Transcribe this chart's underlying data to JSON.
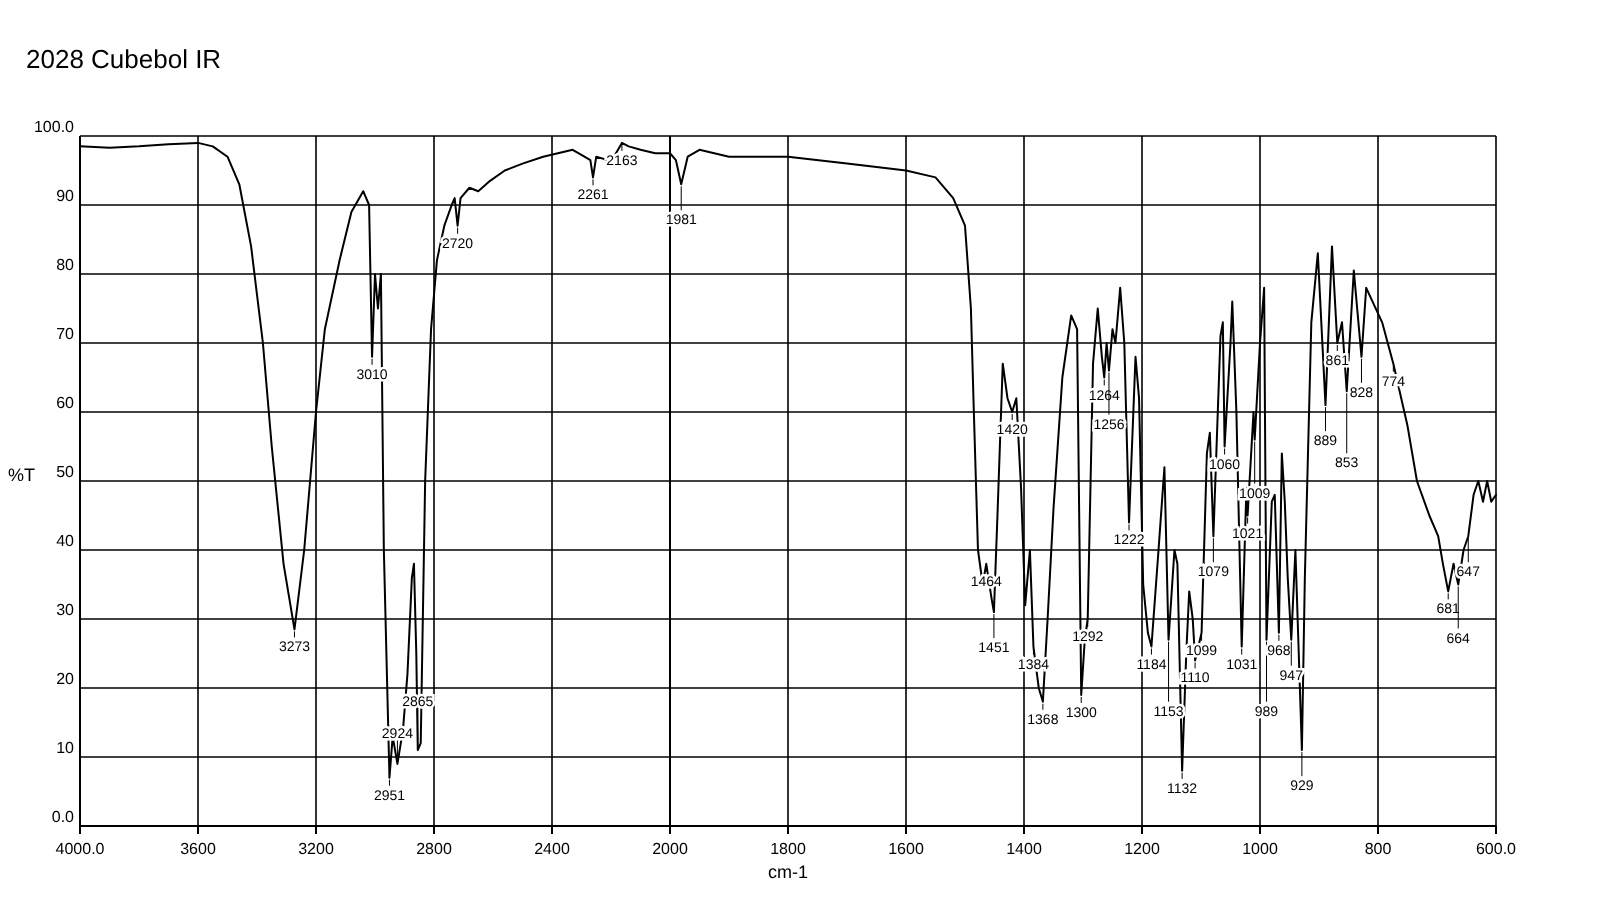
{
  "chart_data": [
    {
      "type": "line",
      "title": "2028 Cubebol IR",
      "ylabel": "%T",
      "xlim": [
        4000,
        2000
      ],
      "xticks": [
        {
          "value": 4000,
          "label": "4000.0"
        },
        3600,
        3200,
        2800,
        2400,
        2000
      ],
      "ylim": [
        0,
        100
      ],
      "yticks": [
        {
          "value": 0,
          "label": "0.0"
        },
        10,
        20,
        30,
        40,
        50,
        60,
        70,
        80,
        90,
        {
          "value": 100,
          "label": "100.0"
        }
      ],
      "grid": true,
      "marker": "none",
      "line_style": "solid",
      "x": [
        4000,
        3900,
        3800,
        3700,
        3600,
        3550,
        3500,
        3460,
        3420,
        3380,
        3350,
        3310,
        3273,
        3240,
        3200,
        3170,
        3120,
        3080,
        3040,
        3020,
        3010,
        3000,
        2990,
        2980,
        2970,
        2951,
        2940,
        2924,
        2905,
        2890,
        2875,
        2868,
        2860,
        2855,
        2845,
        2830,
        2810,
        2790,
        2765,
        2740,
        2730,
        2720,
        2710,
        2680,
        2650,
        2610,
        2560,
        2500,
        2430,
        2380,
        2330,
        2290,
        2270,
        2261,
        2250,
        2210,
        2190,
        2163,
        2140,
        2100,
        2050,
        2000
      ],
      "series": [
        {
          "color": "#000000",
          "values": [
            98.5,
            98.3,
            98.5,
            98.8,
            99,
            98.5,
            97,
            93,
            84,
            70,
            55,
            38,
            28.5,
            40,
            60,
            72,
            82,
            89,
            92,
            90,
            68,
            80,
            75,
            80,
            40,
            7,
            13,
            9,
            14,
            22,
            36,
            38,
            25,
            11,
            12,
            50,
            72,
            82,
            87,
            90,
            91,
            87,
            91,
            92.5,
            92,
            93.5,
            95,
            96,
            97,
            97.5,
            98,
            97,
            96.5,
            94,
            97,
            96.5,
            97,
            99,
            98.5,
            98,
            97.5,
            97.5
          ]
        }
      ],
      "annotations": [
        {
          "text": "3273",
          "x": 3273,
          "y": 28.5
        },
        {
          "text": "3010",
          "x": 3010,
          "y": 68
        },
        {
          "text": "2951",
          "x": 2951,
          "y": 7
        },
        {
          "text": "2924",
          "x": 2924,
          "y": 9
        },
        {
          "text": "2865",
          "x": 2855,
          "y": 11
        },
        {
          "text": "2720",
          "x": 2720,
          "y": 87
        },
        {
          "text": "2261",
          "x": 2261,
          "y": 94
        },
        {
          "text": "2163",
          "x": 2163,
          "y": 99
        }
      ]
    },
    {
      "type": "line",
      "xlabel": "cm-1",
      "tick_labels": "x",
      "xlim": [
        2000,
        600
      ],
      "xticks": [
        1800,
        1600,
        1400,
        1200,
        1000,
        800,
        {
          "value": 600,
          "label": "600.0"
        }
      ],
      "ylim": [
        0,
        100
      ],
      "yticks": [
        0,
        10,
        20,
        30,
        40,
        50,
        60,
        70,
        80,
        90,
        100
      ],
      "grid": true,
      "marker": "none",
      "line_style": "solid",
      "x": [
        2000,
        1990,
        1981,
        1970,
        1950,
        1900,
        1800,
        1700,
        1600,
        1550,
        1520,
        1500,
        1490,
        1485,
        1478,
        1470,
        1464,
        1455,
        1451,
        1445,
        1436,
        1428,
        1420,
        1413,
        1405,
        1398,
        1390,
        1384,
        1375,
        1368,
        1360,
        1350,
        1335,
        1320,
        1310,
        1303,
        1297,
        1292,
        1283,
        1275,
        1268,
        1264,
        1260,
        1256,
        1250,
        1245,
        1237,
        1230,
        1222,
        1211,
        1205,
        1198,
        1190,
        1184,
        1172,
        1162,
        1155,
        1145,
        1140,
        1132,
        1125,
        1120,
        1114,
        1110,
        1099,
        1090,
        1085,
        1079,
        1067,
        1063,
        1060,
        1050,
        1047,
        1040,
        1031,
        1023,
        1021,
        1011,
        1009,
        1000,
        993,
        989,
        980,
        975,
        968,
        963,
        958,
        953,
        947,
        940,
        929,
        924,
        913,
        902,
        889,
        878,
        869,
        861,
        853,
        841,
        828,
        820,
        793,
        774,
        750,
        734,
        713,
        698,
        690,
        681,
        672,
        664,
        655,
        647,
        638,
        630,
        622,
        615,
        608,
        600
      ],
      "series": [
        {
          "color": "#000000",
          "values": [
            97.5,
            96.5,
            93,
            97,
            98,
            97,
            97,
            96,
            95,
            94,
            91,
            87,
            75,
            60,
            40,
            35,
            38,
            33,
            31,
            45,
            67,
            62,
            60,
            62,
            49,
            32,
            40,
            26,
            20,
            18,
            30,
            46,
            65,
            74,
            72,
            19,
            27,
            30,
            67,
            75,
            68,
            65,
            70,
            66,
            72,
            70,
            78,
            70,
            44,
            68,
            62,
            35,
            28,
            26,
            40,
            52,
            27,
            40,
            38,
            8,
            25,
            34,
            30,
            24,
            28,
            54,
            57,
            42,
            71,
            73,
            55,
            70,
            76,
            60,
            26,
            49,
            45,
            60,
            56,
            70,
            78,
            27,
            47,
            48,
            28,
            54,
            47,
            36,
            27,
            40,
            11,
            36,
            73,
            83,
            61,
            84,
            70,
            73,
            63,
            80.5,
            68,
            78,
            73,
            67,
            58,
            50,
            45,
            42,
            38,
            34,
            38,
            35,
            40,
            42,
            48,
            50,
            47,
            50,
            47,
            48
          ]
        }
      ],
      "annotations": [
        {
          "text": "1981",
          "x": 1981,
          "y": 93
        },
        {
          "text": "1464",
          "x": 1464,
          "y": 38
        },
        {
          "text": "1451",
          "x": 1451,
          "y": 31
        },
        {
          "text": "1420",
          "x": 1420,
          "y": 60
        },
        {
          "text": "1384",
          "x": 1384,
          "y": 26
        },
        {
          "text": "1368",
          "x": 1368,
          "y": 18
        },
        {
          "text": "1300",
          "x": 1303,
          "y": 19
        },
        {
          "text": "1292",
          "x": 1292,
          "y": 30
        },
        {
          "text": "1264",
          "x": 1264,
          "y": 65
        },
        {
          "text": "1256",
          "x": 1256,
          "y": 66
        },
        {
          "text": "1222",
          "x": 1222,
          "y": 44
        },
        {
          "text": "1184",
          "x": 1184,
          "y": 26
        },
        {
          "text": "1153",
          "x": 1155,
          "y": 27
        },
        {
          "text": "1132",
          "x": 1132,
          "y": 8
        },
        {
          "text": "1110",
          "x": 1110,
          "y": 24
        },
        {
          "text": "1099",
          "x": 1099,
          "y": 28
        },
        {
          "text": "1079",
          "x": 1079,
          "y": 42
        },
        {
          "text": "1060",
          "x": 1060,
          "y": 55
        },
        {
          "text": "1031",
          "x": 1031,
          "y": 26
        },
        {
          "text": "1021",
          "x": 1021,
          "y": 45
        },
        {
          "text": "1009",
          "x": 1009,
          "y": 56
        },
        {
          "text": "989",
          "x": 989,
          "y": 27
        },
        {
          "text": "968",
          "x": 968,
          "y": 28
        },
        {
          "text": "947",
          "x": 947,
          "y": 27
        },
        {
          "text": "929",
          "x": 929,
          "y": 11
        },
        {
          "text": "889",
          "x": 889,
          "y": 61
        },
        {
          "text": "861",
          "x": 869,
          "y": 70
        },
        {
          "text": "853",
          "x": 853,
          "y": 63
        },
        {
          "text": "828",
          "x": 828,
          "y": 68
        },
        {
          "text": "774",
          "x": 774,
          "y": 67
        },
        {
          "text": "681",
          "x": 681,
          "y": 34
        },
        {
          "text": "664",
          "x": 664,
          "y": 35
        },
        {
          "text": "647",
          "x": 647,
          "y": 42
        }
      ]
    }
  ]
}
